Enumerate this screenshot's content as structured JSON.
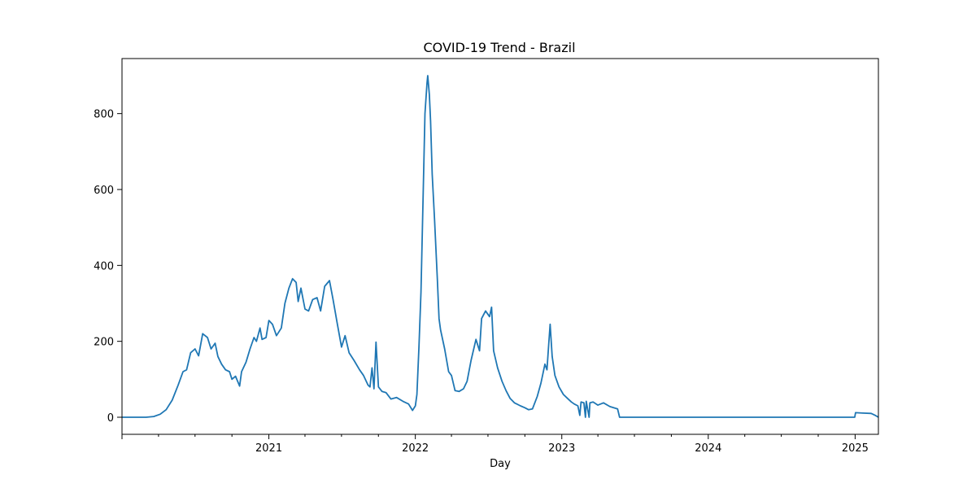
{
  "chart_data": {
    "type": "line",
    "title": "COVID-19 Trend - Brazil",
    "xlabel": "Day",
    "ylabel": "",
    "x_range": [
      "2020-01-01",
      "2025-02-28"
    ],
    "ylim": [
      -45,
      945
    ],
    "x_ticks": [
      {
        "date": "2021-01-01",
        "label": "2021"
      },
      {
        "date": "2022-01-01",
        "label": "2022"
      },
      {
        "date": "2023-01-01",
        "label": "2023"
      },
      {
        "date": "2024-01-01",
        "label": "2024"
      },
      {
        "date": "2025-01-01",
        "label": "2025"
      }
    ],
    "y_ticks": [
      {
        "value": 0,
        "label": "0"
      },
      {
        "value": 200,
        "label": "200"
      },
      {
        "value": 400,
        "label": "400"
      },
      {
        "value": 600,
        "label": "600"
      },
      {
        "value": 800,
        "label": "800"
      }
    ],
    "grid": false,
    "series": [
      {
        "color": "#1f77b4",
        "points": [
          [
            "2020-01-01",
            0
          ],
          [
            "2020-03-01",
            0
          ],
          [
            "2020-03-20",
            2
          ],
          [
            "2020-04-05",
            8
          ],
          [
            "2020-04-20",
            20
          ],
          [
            "2020-05-05",
            45
          ],
          [
            "2020-05-20",
            85
          ],
          [
            "2020-06-01",
            120
          ],
          [
            "2020-06-10",
            125
          ],
          [
            "2020-06-20",
            170
          ],
          [
            "2020-07-01",
            180
          ],
          [
            "2020-07-10",
            162
          ],
          [
            "2020-07-20",
            220
          ],
          [
            "2020-08-01",
            210
          ],
          [
            "2020-08-10",
            180
          ],
          [
            "2020-08-20",
            195
          ],
          [
            "2020-08-27",
            160
          ],
          [
            "2020-09-05",
            140
          ],
          [
            "2020-09-15",
            125
          ],
          [
            "2020-09-25",
            120
          ],
          [
            "2020-10-01",
            100
          ],
          [
            "2020-10-10",
            108
          ],
          [
            "2020-10-20",
            82
          ],
          [
            "2020-10-25",
            120
          ],
          [
            "2020-11-05",
            145
          ],
          [
            "2020-11-15",
            180
          ],
          [
            "2020-11-25",
            210
          ],
          [
            "2020-12-01",
            200
          ],
          [
            "2020-12-10",
            235
          ],
          [
            "2020-12-15",
            205
          ],
          [
            "2020-12-25",
            210
          ],
          [
            "2021-01-01",
            255
          ],
          [
            "2021-01-10",
            245
          ],
          [
            "2021-01-20",
            215
          ],
          [
            "2021-02-01",
            235
          ],
          [
            "2021-02-10",
            300
          ],
          [
            "2021-02-20",
            340
          ],
          [
            "2021-03-01",
            365
          ],
          [
            "2021-03-10",
            355
          ],
          [
            "2021-03-15",
            305
          ],
          [
            "2021-03-22",
            340
          ],
          [
            "2021-04-01",
            285
          ],
          [
            "2021-04-10",
            280
          ],
          [
            "2021-04-20",
            310
          ],
          [
            "2021-05-01",
            315
          ],
          [
            "2021-05-10",
            280
          ],
          [
            "2021-05-20",
            345
          ],
          [
            "2021-06-01",
            360
          ],
          [
            "2021-06-10",
            310
          ],
          [
            "2021-06-20",
            250
          ],
          [
            "2021-07-01",
            185
          ],
          [
            "2021-07-10",
            215
          ],
          [
            "2021-07-20",
            170
          ],
          [
            "2021-08-01",
            150
          ],
          [
            "2021-08-15",
            125
          ],
          [
            "2021-08-25",
            110
          ],
          [
            "2021-09-05",
            85
          ],
          [
            "2021-09-10",
            80
          ],
          [
            "2021-09-15",
            130
          ],
          [
            "2021-09-20",
            75
          ],
          [
            "2021-09-25",
            198
          ],
          [
            "2021-10-01",
            80
          ],
          [
            "2021-10-10",
            68
          ],
          [
            "2021-10-20",
            65
          ],
          [
            "2021-11-01",
            48
          ],
          [
            "2021-11-15",
            52
          ],
          [
            "2021-12-01",
            42
          ],
          [
            "2021-12-15",
            35
          ],
          [
            "2021-12-25",
            18
          ],
          [
            "2022-01-01",
            30
          ],
          [
            "2022-01-05",
            60
          ],
          [
            "2022-01-10",
            185
          ],
          [
            "2022-01-15",
            330
          ],
          [
            "2022-01-20",
            560
          ],
          [
            "2022-01-25",
            800
          ],
          [
            "2022-01-30",
            880
          ],
          [
            "2022-02-01",
            900
          ],
          [
            "2022-02-05",
            850
          ],
          [
            "2022-02-08",
            780
          ],
          [
            "2022-02-12",
            640
          ],
          [
            "2022-02-18",
            520
          ],
          [
            "2022-02-25",
            360
          ],
          [
            "2022-03-01",
            260
          ],
          [
            "2022-03-05",
            230
          ],
          [
            "2022-03-15",
            180
          ],
          [
            "2022-03-25",
            120
          ],
          [
            "2022-04-01",
            110
          ],
          [
            "2022-04-10",
            70
          ],
          [
            "2022-04-20",
            68
          ],
          [
            "2022-05-01",
            75
          ],
          [
            "2022-05-10",
            95
          ],
          [
            "2022-05-20",
            150
          ],
          [
            "2022-06-01",
            205
          ],
          [
            "2022-06-10",
            175
          ],
          [
            "2022-06-15",
            260
          ],
          [
            "2022-06-25",
            280
          ],
          [
            "2022-07-05",
            265
          ],
          [
            "2022-07-10",
            290
          ],
          [
            "2022-07-15",
            175
          ],
          [
            "2022-07-25",
            130
          ],
          [
            "2022-08-05",
            95
          ],
          [
            "2022-08-15",
            70
          ],
          [
            "2022-08-25",
            50
          ],
          [
            "2022-09-05",
            38
          ],
          [
            "2022-09-20",
            30
          ],
          [
            "2022-10-01",
            25
          ],
          [
            "2022-10-10",
            20
          ],
          [
            "2022-10-20",
            22
          ],
          [
            "2022-11-01",
            55
          ],
          [
            "2022-11-10",
            90
          ],
          [
            "2022-11-20",
            140
          ],
          [
            "2022-11-25",
            125
          ],
          [
            "2022-11-30",
            200
          ],
          [
            "2022-12-03",
            245
          ],
          [
            "2022-12-08",
            160
          ],
          [
            "2022-12-15",
            110
          ],
          [
            "2022-12-25",
            80
          ],
          [
            "2023-01-05",
            60
          ],
          [
            "2023-01-15",
            50
          ],
          [
            "2023-01-25",
            40
          ],
          [
            "2023-02-01",
            35
          ],
          [
            "2023-02-10",
            30
          ],
          [
            "2023-02-15",
            5
          ],
          [
            "2023-02-18",
            40
          ],
          [
            "2023-02-25",
            38
          ],
          [
            "2023-03-01",
            0
          ],
          [
            "2023-03-03",
            42
          ],
          [
            "2023-03-10",
            0
          ],
          [
            "2023-03-12",
            38
          ],
          [
            "2023-03-20",
            40
          ],
          [
            "2023-04-01",
            32
          ],
          [
            "2023-04-15",
            38
          ],
          [
            "2023-05-01",
            28
          ],
          [
            "2023-05-20",
            22
          ],
          [
            "2023-05-25",
            0
          ],
          [
            "2024-12-31",
            0
          ],
          [
            "2025-01-02",
            12
          ],
          [
            "2025-01-20",
            11
          ],
          [
            "2025-02-10",
            10
          ],
          [
            "2025-02-20",
            5
          ],
          [
            "2025-02-28",
            0
          ]
        ]
      }
    ]
  }
}
